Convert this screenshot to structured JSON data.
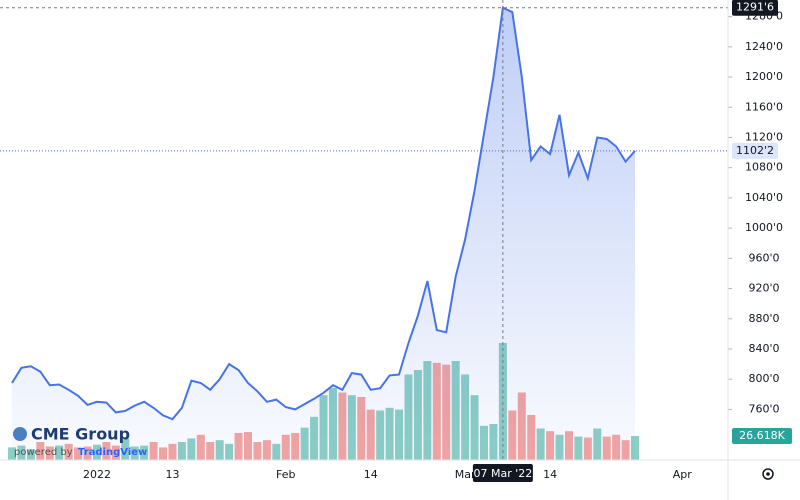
{
  "chart_data": {
    "type": "area",
    "color": "#4673e6",
    "grid": false,
    "categories": [
      null,
      null,
      null,
      null,
      null,
      null,
      null,
      null,
      null,
      "2022",
      null,
      null,
      null,
      null,
      null,
      null,
      null,
      "13",
      null,
      null,
      null,
      null,
      null,
      null,
      null,
      null,
      null,
      null,
      null,
      "Feb",
      null,
      null,
      null,
      null,
      null,
      null,
      null,
      null,
      "14",
      null,
      null,
      null,
      null,
      null,
      null,
      null,
      null,
      null,
      "Mar",
      null,
      null,
      null,
      null,
      null,
      null,
      null,
      null,
      "14",
      null,
      null,
      null,
      null,
      null,
      null,
      null,
      null,
      null,
      null,
      null,
      null,
      null,
      "Apr"
    ],
    "values": [
      795,
      815,
      817,
      810,
      792,
      793,
      786,
      778,
      766,
      770,
      769,
      756,
      758,
      765,
      770,
      762,
      752,
      747,
      762,
      798,
      795,
      786,
      800,
      820,
      812,
      795,
      784,
      770,
      773,
      763,
      760,
      767,
      774,
      782,
      792,
      786,
      808,
      806,
      786,
      788,
      805,
      806,
      848,
      884,
      930,
      865,
      862,
      936,
      985,
      1050,
      1125,
      1200,
      1291.75,
      1286,
      1200,
      1090,
      1108,
      1098,
      1150,
      1070,
      1100,
      1066,
      1120,
      1118,
      1108,
      1088,
      1102.25,
      null,
      null,
      null,
      null,
      null
    ],
    "ylim": [
      693,
      1302
    ],
    "yticks": [
      {
        "value": 760,
        "label": "760'0"
      },
      {
        "value": 800,
        "label": "800'0"
      },
      {
        "value": 840,
        "label": "840'0"
      },
      {
        "value": 880,
        "label": "880'0"
      },
      {
        "value": 920,
        "label": "920'0"
      },
      {
        "value": 960,
        "label": "960'0"
      },
      {
        "value": 1000,
        "label": "1000'0"
      },
      {
        "value": 1040,
        "label": "1040'0"
      },
      {
        "value": 1080,
        "label": "1080'0"
      },
      {
        "value": 1120,
        "label": "1120'0"
      },
      {
        "value": 1160,
        "label": "1160'0"
      },
      {
        "value": 1200,
        "label": "1200'0"
      },
      {
        "value": 1240,
        "label": "1240'0"
      },
      {
        "value": 1280,
        "label": "1280'0"
      }
    ],
    "price_labels": {
      "high": "1291'6",
      "last": "1102'2"
    },
    "crosshair_label": "07 Mar '22",
    "volume": {
      "values": [
        14,
        16,
        12,
        20,
        15,
        16,
        18,
        14,
        15,
        17,
        20,
        16,
        24,
        15,
        16,
        20,
        14,
        18,
        20,
        24,
        28,
        20,
        22,
        18,
        30,
        31,
        20,
        22,
        18,
        28,
        30,
        36,
        48,
        72,
        80,
        75,
        72,
        70,
        56,
        55,
        58,
        56,
        95,
        100,
        110,
        108,
        106,
        110,
        95,
        72,
        38,
        40,
        130,
        55,
        75,
        50,
        35,
        32,
        28,
        32,
        26,
        25,
        35,
        26,
        28,
        22,
        26.618,
        null,
        null,
        null,
        null,
        null
      ],
      "up_color": "#8ccfc4",
      "down_color": "#f5a4a0",
      "last_label": "26.618K"
    },
    "logo": {
      "title": "CME Group",
      "powered_by": "powered by",
      "brand": "TradingView"
    }
  }
}
